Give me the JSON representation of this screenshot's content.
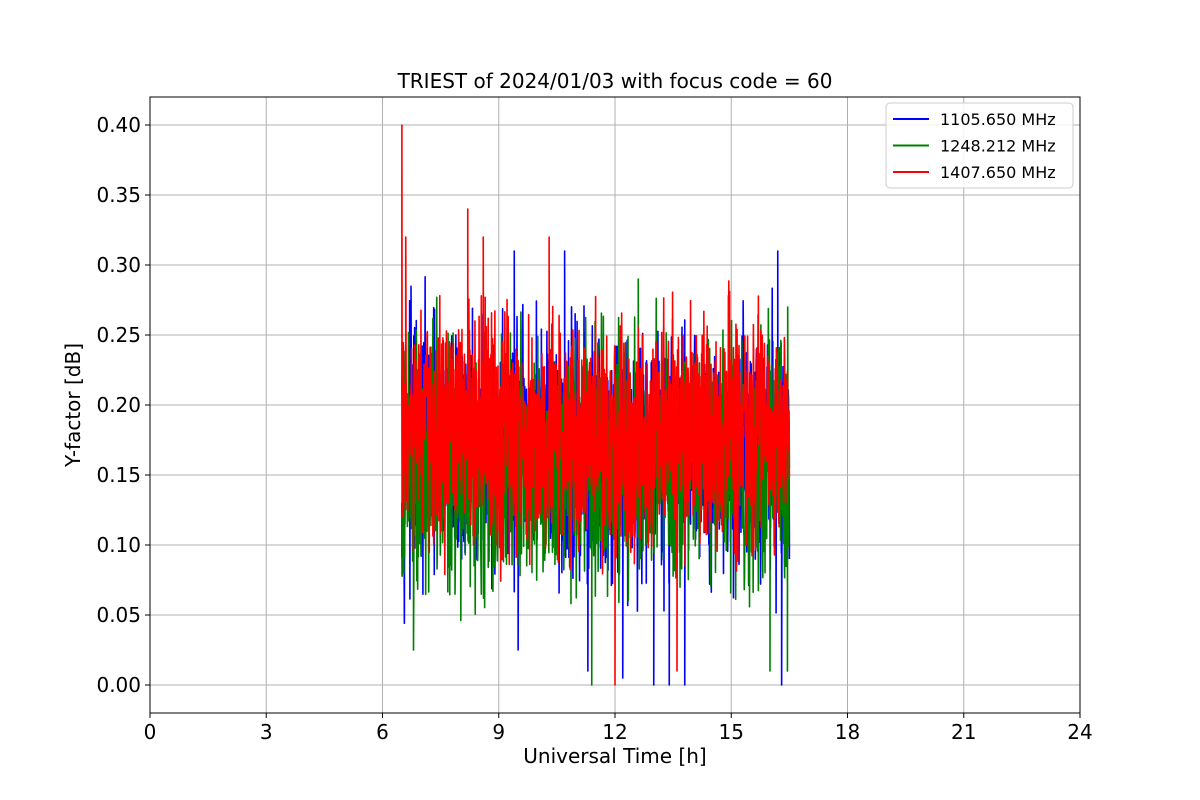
{
  "chart_data": {
    "type": "line",
    "title": "TRIEST of 2024/01/03 with focus code = 60",
    "xlabel": "Universal Time [h]",
    "ylabel": "Y-factor [dB]",
    "xlim": [
      0,
      24
    ],
    "ylim": [
      -0.02,
      0.42
    ],
    "xticks": [
      0,
      3,
      6,
      9,
      12,
      15,
      18,
      21,
      24
    ],
    "xtick_labels": [
      "0",
      "3",
      "6",
      "9",
      "12",
      "15",
      "18",
      "21",
      "24"
    ],
    "yticks": [
      0.0,
      0.05,
      0.1,
      0.15,
      0.2,
      0.25,
      0.3,
      0.35,
      0.4
    ],
    "ytick_labels": [
      "0.00",
      "0.05",
      "0.10",
      "0.15",
      "0.20",
      "0.25",
      "0.30",
      "0.35",
      "0.40"
    ],
    "grid": true,
    "legend_position": "top-right",
    "time_range": [
      6.5,
      16.5
    ],
    "series": [
      {
        "name": "1105.650 MHz",
        "color": "#0000ff",
        "mean": 0.17,
        "spread": 0.075,
        "spikes": [
          [
            6.5,
            0.13
          ],
          [
            9.4,
            0.31
          ],
          [
            9.5,
            0.025
          ],
          [
            10.7,
            0.31
          ],
          [
            11.3,
            0.01
          ],
          [
            12.2,
            0.005
          ],
          [
            13.0,
            0.0
          ],
          [
            13.4,
            0.0
          ],
          [
            13.8,
            0.0
          ],
          [
            16.2,
            0.31
          ],
          [
            16.3,
            0.0
          ],
          [
            16.5,
            0.09
          ]
        ]
      },
      {
        "name": "1248.212 MHz",
        "color": "#008000",
        "mean": 0.16,
        "spread": 0.075,
        "spikes": [
          [
            6.55,
            0.08
          ],
          [
            6.8,
            0.025
          ],
          [
            11.4,
            0.0
          ],
          [
            12.6,
            0.29
          ],
          [
            16.0,
            0.01
          ],
          [
            16.45,
            0.01
          ]
        ]
      },
      {
        "name": "1407.650 MHz",
        "color": "#ff0000",
        "mean": 0.18,
        "spread": 0.07,
        "spikes": [
          [
            6.5,
            0.4
          ],
          [
            6.6,
            0.32
          ],
          [
            8.2,
            0.34
          ],
          [
            8.6,
            0.32
          ],
          [
            10.3,
            0.32
          ],
          [
            12.0,
            0.0
          ],
          [
            13.6,
            0.01
          ]
        ]
      }
    ]
  }
}
